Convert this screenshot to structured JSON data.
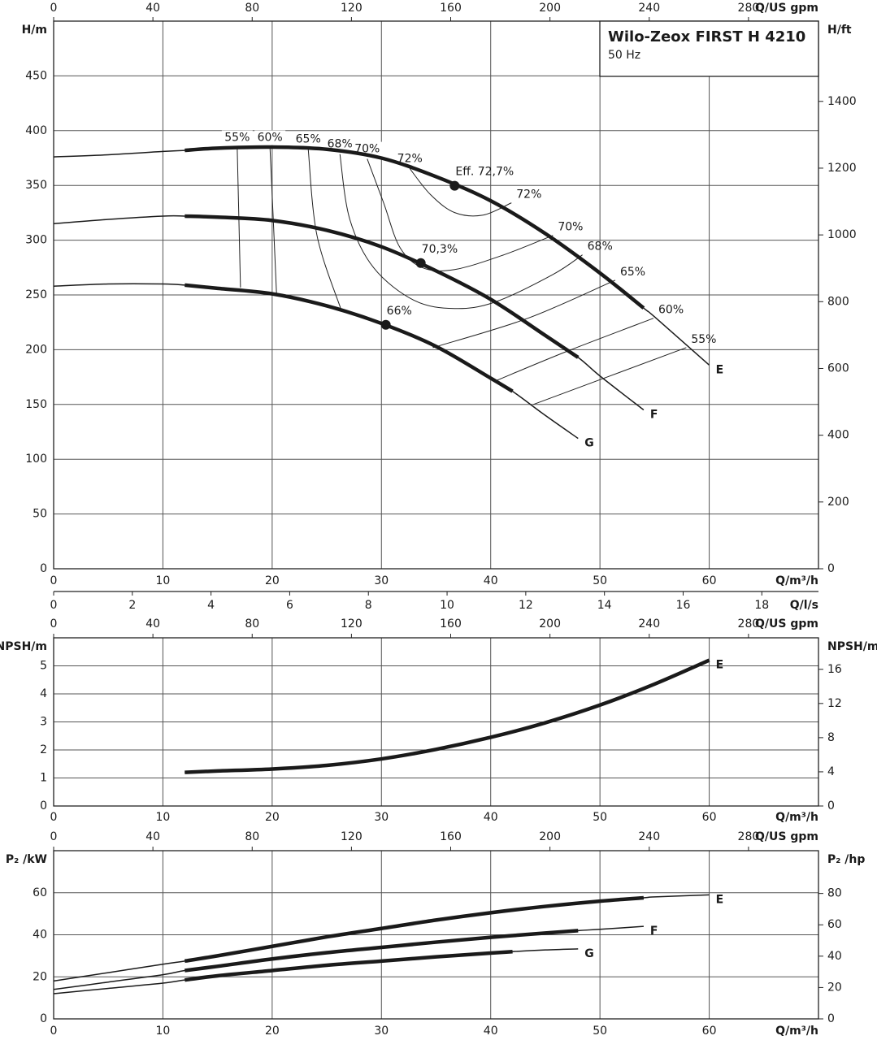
{
  "chart_data": [
    {
      "type": "line",
      "title": "Wilo-Zeox FIRST H 4210",
      "subtitle": "50 Hz",
      "x_label": "Q/m³/h",
      "x2_label": "Q/US gpm",
      "x3_label": "Q/l/s",
      "y_label": "H/m",
      "y2_label": "H/ft",
      "xlim": [
        0,
        70
      ],
      "xticks": [
        0,
        10,
        20,
        30,
        40,
        50,
        60
      ],
      "x2lim": [
        0,
        308.2
      ],
      "x2ticks": [
        0,
        40,
        80,
        120,
        160,
        200,
        240,
        280
      ],
      "x3lim": [
        0,
        19.44
      ],
      "x3ticks": [
        0,
        2,
        4,
        6,
        8,
        10,
        12,
        14,
        16,
        18
      ],
      "ylim": [
        0,
        500
      ],
      "yticks": [
        0,
        50,
        100,
        150,
        200,
        250,
        300,
        350,
        400,
        450
      ],
      "y2lim": [
        0,
        1640.4
      ],
      "y2ticks": [
        0,
        200,
        400,
        600,
        800,
        1000,
        1200,
        1400
      ],
      "grid": true,
      "series": [
        {
          "name": "E",
          "color": "#1a1a1a",
          "x": [
            0,
            5,
            10,
            12,
            15,
            20,
            25,
            30,
            35,
            40,
            45,
            50,
            54,
            55,
            60
          ],
          "values": [
            376,
            378,
            381,
            382,
            384,
            385,
            383,
            375,
            358,
            336,
            306,
            270,
            238,
            230,
            186
          ],
          "bold_range": [
            12,
            54
          ]
        },
        {
          "name": "F",
          "color": "#1a1a1a",
          "x": [
            0,
            5,
            10,
            12,
            15,
            20,
            25,
            30,
            35,
            40,
            45,
            48,
            50,
            54
          ],
          "values": [
            315,
            319,
            322,
            322,
            321,
            318,
            309,
            294,
            272,
            246,
            213,
            193,
            176,
            145
          ],
          "bold_range": [
            12,
            48
          ]
        },
        {
          "name": "G",
          "color": "#1a1a1a",
          "x": [
            0,
            5,
            10,
            12,
            15,
            20,
            25,
            30,
            35,
            40,
            42,
            45,
            48
          ],
          "values": [
            258,
            260,
            260,
            259,
            256,
            251,
            240,
            224,
            203,
            174,
            162,
            140,
            119
          ],
          "bold_range": [
            12,
            42
          ]
        }
      ],
      "iso_efficiency": [
        {
          "label": "55%",
          "pieces": [
            {
              "x": [
                16.8,
                17.1
              ],
              "y": [
                384.6,
                256.8
              ]
            },
            {
              "x": [
                43.9,
                57.9
              ],
              "y": [
                150,
                201.9
              ]
            }
          ]
        },
        {
          "label": "60%",
          "pieces": [
            {
              "x": [
                19.8,
                20.1,
                20.4
              ],
              "y": [
                384.6,
                319.2,
                250.9
              ]
            },
            {
              "x": [
                40.6,
                47.1,
                54.9
              ],
              "y": [
                172.2,
                199,
                228.7
              ]
            }
          ]
        },
        {
          "label": "65%",
          "pieces": [
            {
              "x": [
                23.3,
                24.1,
                26.3
              ],
              "y": [
                383,
                304.4,
                236.8
              ]
            },
            {
              "x": [
                34.7,
                43.4,
                51.4
              ],
              "y": [
                201.9,
                228.7,
                263.5
              ]
            }
          ]
        },
        {
          "label": "68%",
          "pieces": [
            {
              "x": [
                26.2,
                27.1,
                29.3,
                33,
                36.7,
                40.4,
                45.7,
                48.4
              ],
              "y": [
                378.6,
                319.2,
                274.7,
                245,
                237.6,
                243.5,
                268.7,
                286.6
              ]
            }
          ]
        },
        {
          "label": "70%",
          "pieces": [
            {
              "x": [
                28.7,
                30.2,
                31.7,
                33.8,
                36.7,
                41.2,
                45.7
              ],
              "y": [
                374.2,
                334.1,
                293.2,
                274.7,
                273.2,
                286.6,
                304.4
              ]
            }
          ]
        },
        {
          "label": "72%",
          "pieces": [
            {
              "x": [
                32.6,
                34.5,
                36.7,
                39.3,
                41.9
              ],
              "y": [
                365.3,
                341.5,
                325.2,
                322.9,
                334.1
              ]
            }
          ]
        }
      ],
      "points": [
        {
          "label": "Eff. 72,7%",
          "x": 36.7,
          "y": 349.7
        },
        {
          "label": "70,3%",
          "x": 33.6,
          "y": 279.1
        },
        {
          "label": "66%",
          "x": 30.4,
          "y": 222.7
        }
      ]
    },
    {
      "type": "line",
      "x_label": "Q/m³/h",
      "x2_label": "Q/US gpm",
      "y_label": "NPSH/m",
      "y2_label": "NPSH/m",
      "xlim": [
        0,
        70
      ],
      "xticks": [
        0,
        10,
        20,
        30,
        40,
        50,
        60
      ],
      "x2lim": [
        0,
        308.2
      ],
      "x2ticks": [
        0,
        40,
        80,
        120,
        160,
        200,
        240,
        280
      ],
      "ylim": [
        0,
        6
      ],
      "yticks": [
        0,
        1,
        2,
        3,
        4,
        5
      ],
      "y2lim": [
        0,
        19.685
      ],
      "y2ticks": [
        0,
        4,
        8,
        12,
        16
      ],
      "grid": true,
      "series": [
        {
          "name": "E",
          "color": "#1a1a1a",
          "x": [
            12,
            15,
            20,
            25,
            30,
            35,
            40,
            45,
            50,
            55,
            60
          ],
          "values": [
            1.2,
            1.25,
            1.32,
            1.45,
            1.68,
            2.02,
            2.45,
            2.97,
            3.6,
            4.35,
            5.2
          ],
          "bold_range": [
            12,
            60
          ]
        }
      ]
    },
    {
      "type": "line",
      "x_label": "Q/m³/h",
      "x2_label": "Q/US gpm",
      "y_label": "P₂ /kW",
      "y2_label": "P₂ /hp",
      "xlim": [
        0,
        70
      ],
      "xticks": [
        0,
        10,
        20,
        30,
        40,
        50,
        60
      ],
      "x2lim": [
        0,
        308.2
      ],
      "x2ticks": [
        0,
        40,
        80,
        120,
        160,
        200,
        240,
        280
      ],
      "ylim": [
        0,
        80
      ],
      "yticks": [
        0,
        20,
        40,
        60
      ],
      "y2lim": [
        0,
        107.28
      ],
      "y2ticks": [
        0,
        20,
        40,
        60,
        80
      ],
      "grid": true,
      "series": [
        {
          "name": "E",
          "color": "#1a1a1a",
          "x": [
            0,
            5,
            10,
            12,
            15,
            20,
            25,
            30,
            35,
            40,
            45,
            50,
            54,
            55,
            60
          ],
          "values": [
            18,
            22,
            26,
            27.5,
            30,
            34.5,
            39,
            43,
            47,
            50.5,
            53.5,
            56,
            57.6,
            58,
            59
          ],
          "bold_range": [
            12,
            54
          ]
        },
        {
          "name": "F",
          "color": "#1a1a1a",
          "x": [
            0,
            5,
            10,
            12,
            15,
            20,
            25,
            30,
            35,
            40,
            45,
            48,
            50,
            54
          ],
          "values": [
            14,
            17.5,
            21,
            23,
            25,
            28.5,
            31.5,
            34,
            36.5,
            38.8,
            40.8,
            42,
            42.6,
            44
          ],
          "bold_range": [
            12,
            48
          ]
        },
        {
          "name": "G",
          "color": "#1a1a1a",
          "x": [
            0,
            5,
            10,
            12,
            15,
            20,
            25,
            30,
            35,
            40,
            42,
            45,
            48
          ],
          "values": [
            12,
            14.5,
            17,
            18.5,
            20.5,
            23,
            25.5,
            27.5,
            29.5,
            31.3,
            32,
            32.8,
            33.3
          ],
          "bold_range": [
            12,
            42
          ]
        }
      ]
    }
  ]
}
